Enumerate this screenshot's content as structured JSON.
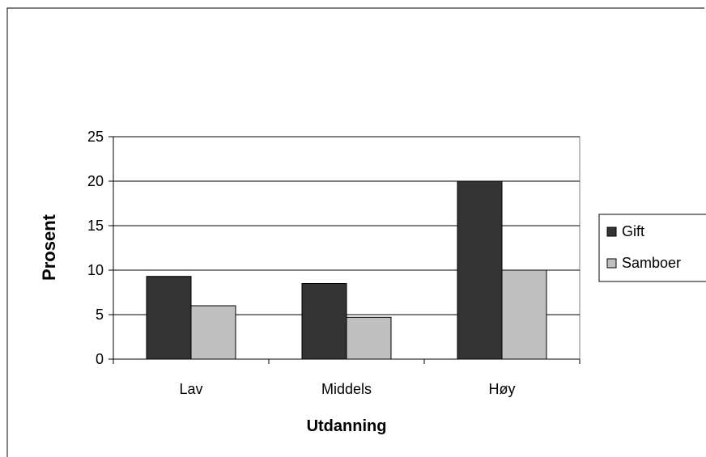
{
  "chart_data": {
    "type": "bar",
    "title": "",
    "xlabel": "Utdanning",
    "ylabel": "Prosent",
    "categories": [
      "Lav",
      "Middels",
      "Høy"
    ],
    "series": [
      {
        "name": "Gift",
        "values": [
          9.3,
          8.5,
          20.0
        ],
        "color": "#333333"
      },
      {
        "name": "Samboer",
        "values": [
          6.0,
          4.7,
          10.0
        ],
        "color": "#c0c0c0"
      }
    ],
    "ylim": [
      0,
      25
    ],
    "yticks": [
      0,
      5,
      10,
      15,
      20,
      25
    ],
    "grid": true,
    "legend_position": "right"
  }
}
